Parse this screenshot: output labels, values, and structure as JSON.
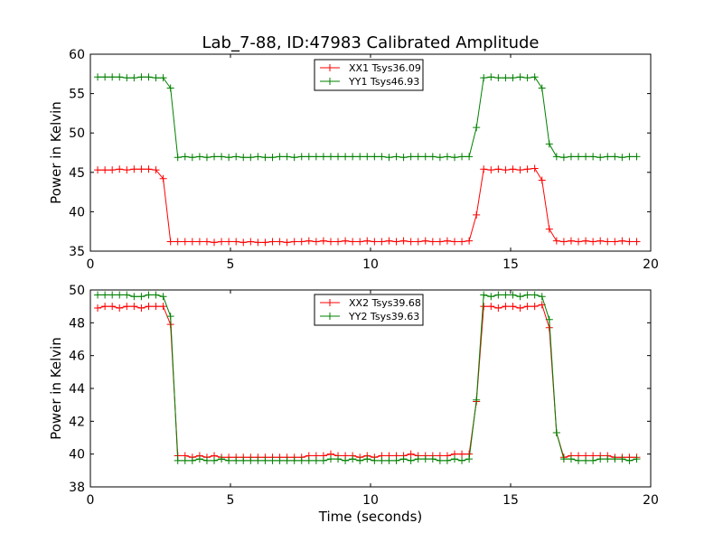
{
  "figure": {
    "title": "Lab_7-88, ID:47983 Calibrated Amplitude",
    "xlabel": "Time (seconds)"
  },
  "chart_data": [
    {
      "type": "line",
      "ylabel": "Power in Kelvin",
      "xlim": [
        0,
        20
      ],
      "ylim": [
        35,
        60
      ],
      "xticks": [
        0,
        5,
        10,
        15,
        20
      ],
      "yticks": [
        35,
        40,
        45,
        50,
        55,
        60
      ],
      "legend_position": "top-center",
      "x": [
        0.26,
        0.52,
        0.78,
        1.04,
        1.3,
        1.56,
        1.82,
        2.08,
        2.34,
        2.6,
        2.86,
        3.12,
        3.38,
        3.64,
        3.9,
        4.16,
        4.42,
        4.68,
        4.94,
        5.2,
        5.46,
        5.72,
        5.98,
        6.24,
        6.5,
        6.76,
        7.02,
        7.28,
        7.54,
        7.8,
        8.06,
        8.32,
        8.58,
        8.84,
        9.1,
        9.36,
        9.62,
        9.88,
        10.14,
        10.4,
        10.66,
        10.92,
        11.18,
        11.44,
        11.7,
        11.96,
        12.22,
        12.48,
        12.74,
        13.0,
        13.26,
        13.52,
        13.78,
        14.04,
        14.3,
        14.56,
        14.82,
        15.08,
        15.34,
        15.6,
        15.86,
        16.12,
        16.38,
        16.64,
        16.9,
        17.16,
        17.42,
        17.68,
        17.94,
        18.2,
        18.46,
        18.72,
        18.98,
        19.24,
        19.5
      ],
      "series": [
        {
          "name": "XX1 Tsys36.09",
          "color": "#ff0000",
          "values": [
            45.3,
            45.3,
            45.3,
            45.4,
            45.3,
            45.4,
            45.4,
            45.4,
            45.3,
            44.2,
            36.2,
            36.2,
            36.2,
            36.2,
            36.2,
            36.2,
            36.1,
            36.2,
            36.2,
            36.2,
            36.1,
            36.2,
            36.1,
            36.1,
            36.2,
            36.2,
            36.1,
            36.2,
            36.2,
            36.3,
            36.2,
            36.3,
            36.2,
            36.2,
            36.3,
            36.2,
            36.2,
            36.3,
            36.2,
            36.2,
            36.3,
            36.2,
            36.3,
            36.2,
            36.2,
            36.3,
            36.2,
            36.2,
            36.3,
            36.2,
            36.2,
            36.3,
            39.6,
            45.4,
            45.3,
            45.4,
            45.3,
            45.4,
            45.3,
            45.4,
            45.5,
            44.0,
            37.8,
            36.3,
            36.2,
            36.3,
            36.2,
            36.3,
            36.2,
            36.3,
            36.2,
            36.2,
            36.3,
            36.2,
            36.2
          ]
        },
        {
          "name": "YY1 Tsys46.93",
          "color": "#008000",
          "values": [
            57.1,
            57.1,
            57.1,
            57.1,
            57.0,
            57.0,
            57.1,
            57.1,
            57.0,
            57.0,
            55.7,
            46.9,
            47.0,
            46.9,
            47.0,
            46.9,
            47.0,
            47.0,
            46.9,
            47.0,
            46.9,
            46.9,
            47.0,
            46.9,
            46.9,
            47.0,
            47.0,
            46.9,
            47.0,
            47.0,
            47.0,
            47.0,
            47.0,
            47.0,
            47.0,
            47.0,
            47.0,
            47.0,
            47.0,
            47.0,
            46.9,
            47.0,
            46.9,
            47.0,
            47.0,
            47.0,
            47.0,
            46.9,
            47.0,
            46.9,
            47.0,
            47.0,
            50.7,
            57.0,
            57.1,
            57.0,
            57.0,
            57.0,
            57.1,
            57.0,
            57.1,
            55.7,
            48.6,
            47.0,
            46.9,
            47.0,
            47.0,
            47.0,
            47.0,
            46.9,
            47.0,
            47.0,
            46.9,
            47.0,
            47.0
          ]
        }
      ]
    },
    {
      "type": "line",
      "ylabel": "Power in Kelvin",
      "xlim": [
        0,
        20
      ],
      "ylim": [
        38,
        50
      ],
      "xticks": [
        0,
        5,
        10,
        15,
        20
      ],
      "yticks": [
        38,
        40,
        42,
        44,
        46,
        48,
        50
      ],
      "legend_position": "top-center",
      "x": [
        0.26,
        0.52,
        0.78,
        1.04,
        1.3,
        1.56,
        1.82,
        2.08,
        2.34,
        2.6,
        2.86,
        3.12,
        3.38,
        3.64,
        3.9,
        4.16,
        4.42,
        4.68,
        4.94,
        5.2,
        5.46,
        5.72,
        5.98,
        6.24,
        6.5,
        6.76,
        7.02,
        7.28,
        7.54,
        7.8,
        8.06,
        8.32,
        8.58,
        8.84,
        9.1,
        9.36,
        9.62,
        9.88,
        10.14,
        10.4,
        10.66,
        10.92,
        11.18,
        11.44,
        11.7,
        11.96,
        12.22,
        12.48,
        12.74,
        13.0,
        13.26,
        13.52,
        13.78,
        14.04,
        14.3,
        14.56,
        14.82,
        15.08,
        15.34,
        15.6,
        15.86,
        16.12,
        16.38,
        16.64,
        16.9,
        17.16,
        17.42,
        17.68,
        17.94,
        18.2,
        18.46,
        18.72,
        18.98,
        19.24,
        19.5
      ],
      "series": [
        {
          "name": "XX2 Tsys39.68",
          "color": "#ff0000",
          "values": [
            48.9,
            49.0,
            49.0,
            48.9,
            49.0,
            49.0,
            48.9,
            49.0,
            49.0,
            49.0,
            47.9,
            39.9,
            39.9,
            39.8,
            39.9,
            39.8,
            39.9,
            39.8,
            39.8,
            39.8,
            39.8,
            39.8,
            39.8,
            39.8,
            39.8,
            39.8,
            39.8,
            39.8,
            39.8,
            39.9,
            39.9,
            39.9,
            40.0,
            39.9,
            39.9,
            39.9,
            39.8,
            39.9,
            39.8,
            39.9,
            39.9,
            39.9,
            39.9,
            40.0,
            39.9,
            39.9,
            39.9,
            39.9,
            39.9,
            40.0,
            40.0,
            40.0,
            43.2,
            49.0,
            49.0,
            48.9,
            49.0,
            49.0,
            48.9,
            49.0,
            49.0,
            49.1,
            47.7,
            41.3,
            39.8,
            39.9,
            39.9,
            39.9,
            39.9,
            39.9,
            39.9,
            39.8,
            39.8,
            39.8,
            39.8
          ]
        },
        {
          "name": "YY2 Tsys39.63",
          "color": "#008000",
          "values": [
            49.7,
            49.7,
            49.7,
            49.7,
            49.7,
            49.6,
            49.6,
            49.7,
            49.7,
            49.6,
            48.4,
            39.6,
            39.6,
            39.6,
            39.7,
            39.6,
            39.6,
            39.7,
            39.6,
            39.6,
            39.6,
            39.6,
            39.6,
            39.6,
            39.6,
            39.6,
            39.6,
            39.6,
            39.6,
            39.6,
            39.6,
            39.6,
            39.7,
            39.7,
            39.6,
            39.7,
            39.6,
            39.7,
            39.6,
            39.6,
            39.6,
            39.6,
            39.7,
            39.6,
            39.7,
            39.7,
            39.7,
            39.6,
            39.6,
            39.7,
            39.6,
            39.7,
            43.3,
            49.7,
            49.6,
            49.7,
            49.7,
            49.7,
            49.6,
            49.7,
            49.7,
            49.6,
            48.2,
            41.3,
            39.7,
            39.7,
            39.6,
            39.6,
            39.6,
            39.7,
            39.7,
            39.7,
            39.7,
            39.6,
            39.7
          ]
        }
      ]
    }
  ]
}
